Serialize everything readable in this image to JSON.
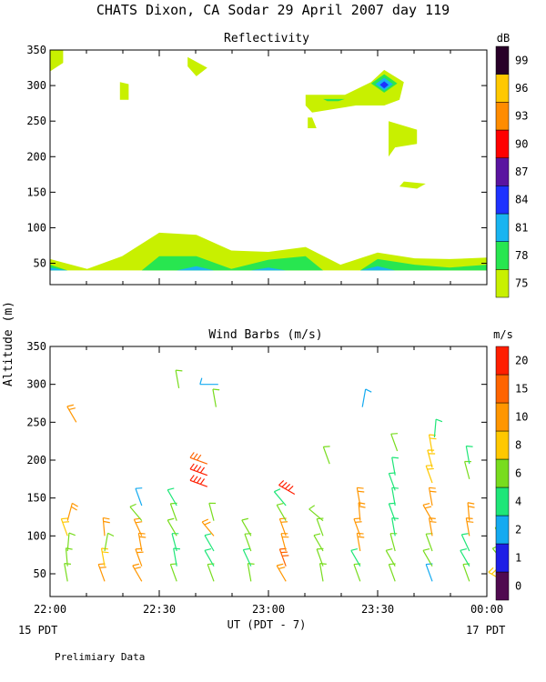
{
  "page": {
    "title": "CHATS Dixon, CA  Sodar  29 April 2007  day 119",
    "shared_ylabel": "Altitude (m)",
    "xlabel": "UT  (PDT - 7)",
    "left_date_label": "15 PDT",
    "right_date_label": "17 PDT",
    "footer": "Prelimiary Data"
  },
  "chart_data": [
    {
      "type": "heatmap",
      "title": "Reflectivity",
      "colorbar_unit": "dB",
      "x_ticks": [
        "22:00",
        "22:30",
        "23:00",
        "23:30",
        "00:00"
      ],
      "x_range_hours": [
        22.0,
        24.0
      ],
      "y_ticks": [
        50,
        100,
        150,
        200,
        250,
        300,
        350
      ],
      "ylim": [
        20,
        350
      ],
      "levels": [
        {
          "label": "75",
          "color": "#c8f000"
        },
        {
          "label": "78",
          "color": "#28e650"
        },
        {
          "label": "81",
          "color": "#19b4f0"
        },
        {
          "label": "84",
          "color": "#1e32ff"
        },
        {
          "label": "87",
          "color": "#5a14a0"
        },
        {
          "label": "90",
          "color": "#ff0000"
        },
        {
          "label": "93",
          "color": "#ff8c00"
        },
        {
          "label": "96",
          "color": "#ffc800"
        },
        {
          "label": "99",
          "color": "#280028"
        }
      ],
      "regions": [
        {
          "level": 0,
          "points": [
            [
              22.0,
              56
            ],
            [
              22.17,
              42
            ],
            [
              22.33,
              60
            ],
            [
              22.5,
              93
            ],
            [
              22.67,
              90
            ],
            [
              22.83,
              68
            ],
            [
              23.0,
              66
            ],
            [
              23.17,
              73
            ],
            [
              23.33,
              48
            ],
            [
              23.5,
              65
            ],
            [
              23.67,
              57
            ],
            [
              23.83,
              56
            ],
            [
              24.0,
              58
            ],
            [
              24.0,
              40
            ],
            [
              22.0,
              40
            ]
          ]
        },
        {
          "level": 1,
          "points": [
            [
              22.0,
              48
            ],
            [
              22.08,
              40
            ],
            [
              22.42,
              40
            ],
            [
              22.5,
              60
            ],
            [
              22.67,
              60
            ],
            [
              22.83,
              42
            ],
            [
              23.0,
              55
            ],
            [
              23.17,
              60
            ],
            [
              23.25,
              40
            ],
            [
              23.42,
              40
            ],
            [
              23.5,
              56
            ],
            [
              23.67,
              48
            ],
            [
              23.83,
              44
            ],
            [
              24.0,
              48
            ],
            [
              24.0,
              40
            ],
            [
              22.0,
              40
            ]
          ]
        },
        {
          "level": 2,
          "points": [
            [
              22.0,
              44
            ],
            [
              22.08,
              40
            ],
            [
              22.0,
              40
            ]
          ]
        },
        {
          "level": 2,
          "points": [
            [
              22.58,
              40
            ],
            [
              22.67,
              46
            ],
            [
              22.75,
              40
            ]
          ]
        },
        {
          "level": 2,
          "points": [
            [
              22.92,
              40
            ],
            [
              23.0,
              44
            ],
            [
              23.08,
              40
            ]
          ]
        },
        {
          "level": 2,
          "points": [
            [
              23.42,
              40
            ],
            [
              23.5,
              46
            ],
            [
              23.58,
              40
            ]
          ]
        },
        {
          "level": 0,
          "points": [
            [
              22.0,
              350
            ],
            [
              22.06,
              350
            ],
            [
              22.06,
              332
            ],
            [
              22.0,
              320
            ]
          ]
        },
        {
          "level": 0,
          "points": [
            [
              22.32,
              305
            ],
            [
              22.36,
              302
            ],
            [
              22.36,
              280
            ],
            [
              22.32,
              280
            ]
          ]
        },
        {
          "level": 0,
          "points": [
            [
              22.63,
              340
            ],
            [
              22.72,
              325
            ],
            [
              22.67,
              313
            ],
            [
              22.63,
              327
            ]
          ]
        },
        {
          "level": 0,
          "points": [
            [
              23.17,
              287
            ],
            [
              23.35,
              287
            ],
            [
              23.47,
              305
            ],
            [
              23.53,
              322
            ],
            [
              23.62,
              305
            ],
            [
              23.6,
              280
            ],
            [
              23.53,
              272
            ],
            [
              23.4,
              272
            ],
            [
              23.2,
              262
            ],
            [
              23.17,
              272
            ]
          ]
        },
        {
          "level": 0,
          "points": [
            [
              23.18,
              255
            ],
            [
              23.2,
              255
            ],
            [
              23.22,
              240
            ],
            [
              23.18,
              240
            ]
          ]
        },
        {
          "level": 0,
          "points": [
            [
              23.55,
              250
            ],
            [
              23.68,
              238
            ],
            [
              23.68,
              218
            ],
            [
              23.58,
              213
            ],
            [
              23.55,
              200
            ]
          ]
        },
        {
          "level": 0,
          "points": [
            [
              23.62,
              165
            ],
            [
              23.72,
              162
            ],
            [
              23.68,
              155
            ],
            [
              23.6,
              158
            ]
          ]
        },
        {
          "level": 1,
          "points": [
            [
              23.47,
              303
            ],
            [
              23.53,
              316
            ],
            [
              23.59,
              303
            ],
            [
              23.53,
              290
            ]
          ]
        },
        {
          "level": 2,
          "points": [
            [
              23.49,
              302
            ],
            [
              23.53,
              311
            ],
            [
              23.57,
              302
            ],
            [
              23.53,
              293
            ]
          ]
        },
        {
          "level": 3,
          "points": [
            [
              23.51,
              301
            ],
            [
              23.53,
              306
            ],
            [
              23.55,
              301
            ],
            [
              23.53,
              296
            ]
          ]
        },
        {
          "level": 1,
          "points": [
            [
              23.25,
              281
            ],
            [
              23.35,
              281
            ],
            [
              23.32,
              278
            ],
            [
              23.27,
              278
            ]
          ]
        }
      ]
    },
    {
      "type": "scatter",
      "title": "Wind Barbs (m/s)",
      "colorbar_unit": "m/s",
      "x_ticks": [
        "22:00",
        "22:30",
        "23:00",
        "23:30",
        "00:00"
      ],
      "x_range_hours": [
        22.0,
        24.0
      ],
      "y_ticks": [
        50,
        100,
        150,
        200,
        250,
        300,
        350
      ],
      "ylim": [
        20,
        350
      ],
      "levels": [
        {
          "label": "0",
          "color": "#500a50"
        },
        {
          "label": "1",
          "color": "#1e1ee6"
        },
        {
          "label": "2",
          "color": "#14aaf0"
        },
        {
          "label": "4",
          "color": "#1ee678"
        },
        {
          "label": "6",
          "color": "#78dc1e"
        },
        {
          "label": "8",
          "color": "#ffc800"
        },
        {
          "label": "10",
          "color": "#ff9600"
        },
        {
          "label": "15",
          "color": "#ff6400"
        },
        {
          "label": "20",
          "color": "#ff1e00"
        }
      ],
      "barbs": [
        {
          "t": 22.08,
          "alt": 40,
          "dir": 350,
          "spd": 6
        },
        {
          "t": 22.08,
          "alt": 60,
          "dir": 355,
          "spd": 6
        },
        {
          "t": 22.08,
          "alt": 80,
          "dir": 5,
          "spd": 6
        },
        {
          "t": 22.08,
          "alt": 100,
          "dir": 340,
          "spd": 8
        },
        {
          "t": 22.08,
          "alt": 120,
          "dir": 15,
          "spd": 10
        },
        {
          "t": 22.12,
          "alt": 250,
          "dir": 330,
          "spd": 10
        },
        {
          "t": 22.25,
          "alt": 40,
          "dir": 340,
          "spd": 10
        },
        {
          "t": 22.25,
          "alt": 60,
          "dir": 350,
          "spd": 8
        },
        {
          "t": 22.25,
          "alt": 80,
          "dir": 10,
          "spd": 6
        },
        {
          "t": 22.25,
          "alt": 100,
          "dir": 355,
          "spd": 10
        },
        {
          "t": 22.42,
          "alt": 40,
          "dir": 330,
          "spd": 10
        },
        {
          "t": 22.42,
          "alt": 60,
          "dir": 340,
          "spd": 10
        },
        {
          "t": 22.42,
          "alt": 80,
          "dir": 350,
          "spd": 10
        },
        {
          "t": 22.42,
          "alt": 100,
          "dir": 335,
          "spd": 10
        },
        {
          "t": 22.42,
          "alt": 120,
          "dir": 320,
          "spd": 6
        },
        {
          "t": 22.42,
          "alt": 140,
          "dir": 340,
          "spd": 2
        },
        {
          "t": 22.58,
          "alt": 40,
          "dir": 340,
          "spd": 6
        },
        {
          "t": 22.58,
          "alt": 60,
          "dir": 350,
          "spd": 4
        },
        {
          "t": 22.58,
          "alt": 80,
          "dir": 345,
          "spd": 4
        },
        {
          "t": 22.58,
          "alt": 100,
          "dir": 330,
          "spd": 6
        },
        {
          "t": 22.58,
          "alt": 120,
          "dir": 340,
          "spd": 6
        },
        {
          "t": 22.58,
          "alt": 140,
          "dir": 330,
          "spd": 4
        },
        {
          "t": 22.59,
          "alt": 295,
          "dir": 350,
          "spd": 6
        },
        {
          "t": 22.75,
          "alt": 40,
          "dir": 340,
          "spd": 6
        },
        {
          "t": 22.75,
          "alt": 60,
          "dir": 330,
          "spd": 4
        },
        {
          "t": 22.75,
          "alt": 80,
          "dir": 330,
          "spd": 4
        },
        {
          "t": 22.75,
          "alt": 100,
          "dir": 320,
          "spd": 10
        },
        {
          "t": 22.75,
          "alt": 120,
          "dir": 345,
          "spd": 6
        },
        {
          "t": 22.72,
          "alt": 165,
          "dir": 290,
          "spd": 20
        },
        {
          "t": 22.72,
          "alt": 180,
          "dir": 290,
          "spd": 20
        },
        {
          "t": 22.72,
          "alt": 195,
          "dir": 290,
          "spd": 15
        },
        {
          "t": 22.76,
          "alt": 270,
          "dir": 350,
          "spd": 6
        },
        {
          "t": 22.77,
          "alt": 300,
          "dir": 270,
          "spd": 2
        },
        {
          "t": 22.92,
          "alt": 40,
          "dir": 350,
          "spd": 6
        },
        {
          "t": 22.92,
          "alt": 60,
          "dir": 335,
          "spd": 4
        },
        {
          "t": 22.92,
          "alt": 80,
          "dir": 340,
          "spd": 6
        },
        {
          "t": 22.92,
          "alt": 100,
          "dir": 330,
          "spd": 6
        },
        {
          "t": 23.08,
          "alt": 40,
          "dir": 330,
          "spd": 10
        },
        {
          "t": 23.08,
          "alt": 60,
          "dir": 340,
          "spd": 15
        },
        {
          "t": 23.08,
          "alt": 80,
          "dir": 345,
          "spd": 10
        },
        {
          "t": 23.08,
          "alt": 100,
          "dir": 340,
          "spd": 10
        },
        {
          "t": 23.08,
          "alt": 120,
          "dir": 330,
          "spd": 6
        },
        {
          "t": 23.08,
          "alt": 140,
          "dir": 320,
          "spd": 4
        },
        {
          "t": 23.12,
          "alt": 155,
          "dir": 300,
          "spd": 20
        },
        {
          "t": 23.25,
          "alt": 40,
          "dir": 350,
          "spd": 6
        },
        {
          "t": 23.25,
          "alt": 60,
          "dir": 340,
          "spd": 6
        },
        {
          "t": 23.25,
          "alt": 80,
          "dir": 330,
          "spd": 6
        },
        {
          "t": 23.25,
          "alt": 100,
          "dir": 340,
          "spd": 6
        },
        {
          "t": 23.25,
          "alt": 120,
          "dir": 310,
          "spd": 6
        },
        {
          "t": 23.28,
          "alt": 195,
          "dir": 340,
          "spd": 6
        },
        {
          "t": 23.42,
          "alt": 40,
          "dir": 340,
          "spd": 6
        },
        {
          "t": 23.42,
          "alt": 60,
          "dir": 330,
          "spd": 4
        },
        {
          "t": 23.42,
          "alt": 80,
          "dir": 350,
          "spd": 10
        },
        {
          "t": 23.42,
          "alt": 100,
          "dir": 340,
          "spd": 10
        },
        {
          "t": 23.42,
          "alt": 120,
          "dir": 355,
          "spd": 10
        },
        {
          "t": 23.42,
          "alt": 140,
          "dir": 350,
          "spd": 10
        },
        {
          "t": 23.43,
          "alt": 270,
          "dir": 10,
          "spd": 2
        },
        {
          "t": 23.58,
          "alt": 40,
          "dir": 340,
          "spd": 6
        },
        {
          "t": 23.58,
          "alt": 60,
          "dir": 330,
          "spd": 6
        },
        {
          "t": 23.58,
          "alt": 80,
          "dir": 345,
          "spd": 6
        },
        {
          "t": 23.58,
          "alt": 100,
          "dir": 350,
          "spd": 4
        },
        {
          "t": 23.58,
          "alt": 120,
          "dir": 340,
          "spd": 4
        },
        {
          "t": 23.58,
          "alt": 140,
          "dir": 350,
          "spd": 4
        },
        {
          "t": 23.58,
          "alt": 160,
          "dir": 340,
          "spd": 4
        },
        {
          "t": 23.58,
          "alt": 180,
          "dir": 350,
          "spd": 4
        },
        {
          "t": 23.59,
          "alt": 212,
          "dir": 340,
          "spd": 6
        },
        {
          "t": 23.75,
          "alt": 40,
          "dir": 340,
          "spd": 2
        },
        {
          "t": 23.75,
          "alt": 60,
          "dir": 330,
          "spd": 6
        },
        {
          "t": 23.75,
          "alt": 80,
          "dir": 340,
          "spd": 6
        },
        {
          "t": 23.75,
          "alt": 100,
          "dir": 350,
          "spd": 10
        },
        {
          "t": 23.75,
          "alt": 120,
          "dir": 330,
          "spd": 10
        },
        {
          "t": 23.75,
          "alt": 140,
          "dir": 350,
          "spd": 10
        },
        {
          "t": 23.75,
          "alt": 170,
          "dir": 340,
          "spd": 8
        },
        {
          "t": 23.75,
          "alt": 190,
          "dir": 345,
          "spd": 8
        },
        {
          "t": 23.75,
          "alt": 210,
          "dir": 350,
          "spd": 8
        },
        {
          "t": 23.76,
          "alt": 230,
          "dir": 5,
          "spd": 4
        },
        {
          "t": 23.92,
          "alt": 40,
          "dir": 340,
          "spd": 6
        },
        {
          "t": 23.92,
          "alt": 60,
          "dir": 330,
          "spd": 4
        },
        {
          "t": 23.92,
          "alt": 80,
          "dir": 335,
          "spd": 4
        },
        {
          "t": 23.92,
          "alt": 100,
          "dir": 350,
          "spd": 10
        },
        {
          "t": 23.92,
          "alt": 120,
          "dir": 355,
          "spd": 10
        },
        {
          "t": 23.92,
          "alt": 175,
          "dir": 345,
          "spd": 6
        },
        {
          "t": 23.92,
          "alt": 195,
          "dir": 350,
          "spd": 4
        },
        {
          "t": 24.08,
          "alt": 40,
          "dir": 300,
          "spd": 8
        },
        {
          "t": 24.08,
          "alt": 65,
          "dir": 320,
          "spd": 6
        },
        {
          "t": 24.08,
          "alt": 90,
          "dir": 330,
          "spd": 6
        }
      ]
    }
  ]
}
